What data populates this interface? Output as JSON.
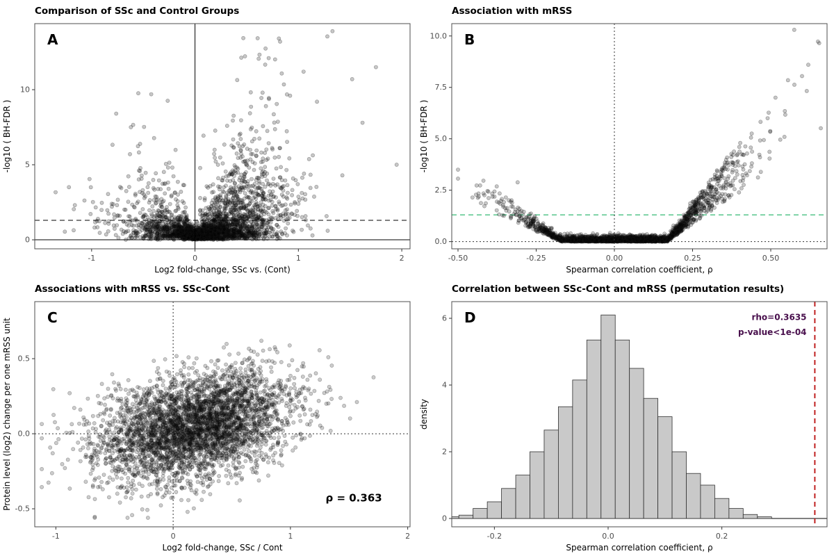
{
  "figure": {
    "description": "Four-panel statistical figure of SSc proteomics associations"
  },
  "chart_data": [
    {
      "type": "scatter",
      "letter": "A",
      "title": "Comparison of SSc and Control Groups",
      "xlabel": "Log2 fold-change, SSc vs. (Cont)",
      "ylabel": "-log10 ( BH-FDR )",
      "xlim": [
        -1.55,
        2.08
      ],
      "ylim": [
        -0.6,
        14.4
      ],
      "xticks": [
        {
          "v": -1,
          "l": "-1"
        },
        {
          "v": 0,
          "l": "0"
        },
        {
          "v": 1,
          "l": "1"
        },
        {
          "v": 2,
          "l": "2"
        }
      ],
      "yticks": [
        {
          "v": 0,
          "l": "0"
        },
        {
          "v": 5,
          "l": "5"
        },
        {
          "v": 10,
          "l": "10"
        }
      ],
      "hlines": [
        {
          "y": 0,
          "style": "solid",
          "color": "#000000"
        },
        {
          "y": 1.301,
          "style": "dashed",
          "color": "#000000"
        }
      ],
      "vlines": [
        {
          "x": 0,
          "style": "solid",
          "color": "#000000"
        }
      ],
      "significance_threshold": "BH-FDR = 0.05 (dashed line at -log10 = 1.301)",
      "generator": "volcanoA",
      "gen": {
        "seed": 101,
        "core_n": 2400,
        "left_n": 130,
        "mid_n": 320,
        "outliers": [
          [
            1.33,
            13.9
          ],
          [
            1.28,
            13.55
          ],
          [
            1.75,
            11.5
          ],
          [
            1.52,
            10.7
          ],
          [
            1.05,
            11.2
          ],
          [
            0.86,
            10.35
          ],
          [
            0.92,
            9.6
          ],
          [
            1.18,
            9.2
          ],
          [
            1.62,
            7.8
          ],
          [
            -0.62,
            7.5
          ],
          [
            -1.02,
            4.05
          ],
          [
            1.95,
            5.0
          ]
        ]
      },
      "point_style": {
        "r": 2.6,
        "fill": "#000000",
        "fill_opacity": 0.22,
        "stroke": "#1a1a1a",
        "stroke_opacity": 0.4
      },
      "annotations": []
    },
    {
      "type": "scatter",
      "letter": "B",
      "title": "Association with mRSS",
      "xlabel": "Spearman correlation coefficient, ρ",
      "ylabel": "-log10 ( BH-FDR )",
      "xlim": [
        -0.52,
        0.68
      ],
      "ylim": [
        -0.35,
        10.6
      ],
      "xticks": [
        {
          "v": -0.5,
          "l": "-0.50"
        },
        {
          "v": -0.25,
          "l": "-0.25"
        },
        {
          "v": 0,
          "l": "0.00"
        },
        {
          "v": 0.25,
          "l": "0.25"
        },
        {
          "v": 0.5,
          "l": "0.50"
        }
      ],
      "yticks": [
        {
          "v": 0,
          "l": "0.0"
        },
        {
          "v": 2.5,
          "l": "2.5"
        },
        {
          "v": 5,
          "l": "5.0"
        },
        {
          "v": 7.5,
          "l": "7.5"
        },
        {
          "v": 10,
          "l": "10.0"
        }
      ],
      "hlines": [
        {
          "y": 0,
          "style": "dotted",
          "color": "#333333"
        },
        {
          "y": 1.301,
          "style": "dashed",
          "color": "#00a651"
        }
      ],
      "vlines": [
        {
          "x": 0,
          "style": "dotted",
          "color": "#333333"
        }
      ],
      "significance_threshold": "BH-FDR = 0.05 (green dashed line at -log10 = 1.301)",
      "generator": "volcanoB",
      "gen": {
        "seed": 202,
        "core_n": 2600,
        "left_cluster_n": 8,
        "outliers": [
          [
            0.575,
            10.3
          ],
          [
            0.655,
            9.65
          ],
          [
            0.62,
            8.6
          ],
          [
            0.6,
            8.05
          ],
          [
            0.555,
            7.85
          ],
          [
            0.515,
            7.0
          ],
          [
            0.545,
            6.35
          ],
          [
            0.49,
            6.0
          ]
        ]
      },
      "point_style": {
        "r": 2.6,
        "fill": "#000000",
        "fill_opacity": 0.22,
        "stroke": "#1a1a1a",
        "stroke_opacity": 0.4
      },
      "annotations": []
    },
    {
      "type": "scatter",
      "letter": "C",
      "title": "Associations with mRSS vs. SSc-Cont",
      "xlabel": "Log2 fold-change, SSc / Cont",
      "ylabel": "Protein level (log2) change per one mRSS unit",
      "xlim": [
        -1.18,
        2.02
      ],
      "ylim": [
        -0.62,
        0.88
      ],
      "xticks": [
        {
          "v": -1,
          "l": "-1"
        },
        {
          "v": 0,
          "l": "0"
        },
        {
          "v": 1,
          "l": "1"
        },
        {
          "v": 2,
          "l": "2"
        }
      ],
      "yticks": [
        {
          "v": -0.5,
          "l": "-0.5"
        },
        {
          "v": 0,
          "l": "0.0"
        },
        {
          "v": 0.5,
          "l": "0.5"
        }
      ],
      "hlines": [
        {
          "y": 0,
          "style": "dotted",
          "color": "#333333"
        }
      ],
      "vlines": [
        {
          "x": 0,
          "style": "dotted",
          "color": "#333333"
        }
      ],
      "correlation_rho": 0.363,
      "generator": "scatterC",
      "gen": {
        "seed": 303,
        "n": 4000
      },
      "point_style": {
        "r": 2.6,
        "fill": "#000000",
        "fill_opacity": 0.2,
        "stroke": "#1a1a1a",
        "stroke_opacity": 0.38
      },
      "annotations": [
        {
          "text": "ρ = 0.363",
          "x": 1.3,
          "y": -0.45,
          "anchor": "start",
          "size": 15,
          "weight": "bold",
          "color": "#000000"
        }
      ]
    },
    {
      "type": "histogram",
      "letter": "D",
      "title": "Correlation between SSc-Cont and mRSS (permutation results)",
      "xlabel": "Spearman correlation  coefficient, ρ",
      "ylabel": "density",
      "xlim": [
        -0.275,
        0.385
      ],
      "ylim": [
        -0.25,
        6.5
      ],
      "xticks": [
        {
          "v": -0.2,
          "l": "-0.2"
        },
        {
          "v": 0,
          "l": "0.0"
        },
        {
          "v": 0.2,
          "l": "0.2"
        }
      ],
      "yticks": [
        {
          "v": 0,
          "l": "0"
        },
        {
          "v": 2,
          "l": "2"
        },
        {
          "v": 4,
          "l": "4"
        },
        {
          "v": 6,
          "l": "6"
        }
      ],
      "hlines": [
        {
          "y": 0,
          "style": "solid",
          "color": "#000000"
        }
      ],
      "vlines": [
        {
          "x": 0.3635,
          "style": "dashed",
          "color": "#c02020",
          "width": 2
        }
      ],
      "histogram": {
        "bin_start": -0.2875,
        "bin_width": 0.025,
        "densities": [
          0.05,
          0.1,
          0.3,
          0.5,
          0.9,
          1.3,
          2.0,
          2.65,
          3.35,
          4.15,
          5.35,
          6.1,
          5.35,
          4.5,
          3.6,
          3.05,
          2.0,
          1.35,
          1.0,
          0.6,
          0.3,
          0.12,
          0.05
        ],
        "fill": "#c9c9c9",
        "stroke": "#2f2f2f"
      },
      "stats": {
        "rho": "0.3635",
        "p_value": "<1e-04"
      },
      "annotations": [
        {
          "text": "rho=0.3635",
          "x": 0.349,
          "y": 5.95,
          "anchor": "end",
          "size": 12,
          "weight": "bold",
          "color": "#49104d"
        },
        {
          "text": "p-value<1e-04",
          "x": 0.349,
          "y": 5.5,
          "anchor": "end",
          "size": 12,
          "weight": "bold",
          "color": "#49104d"
        }
      ]
    }
  ]
}
